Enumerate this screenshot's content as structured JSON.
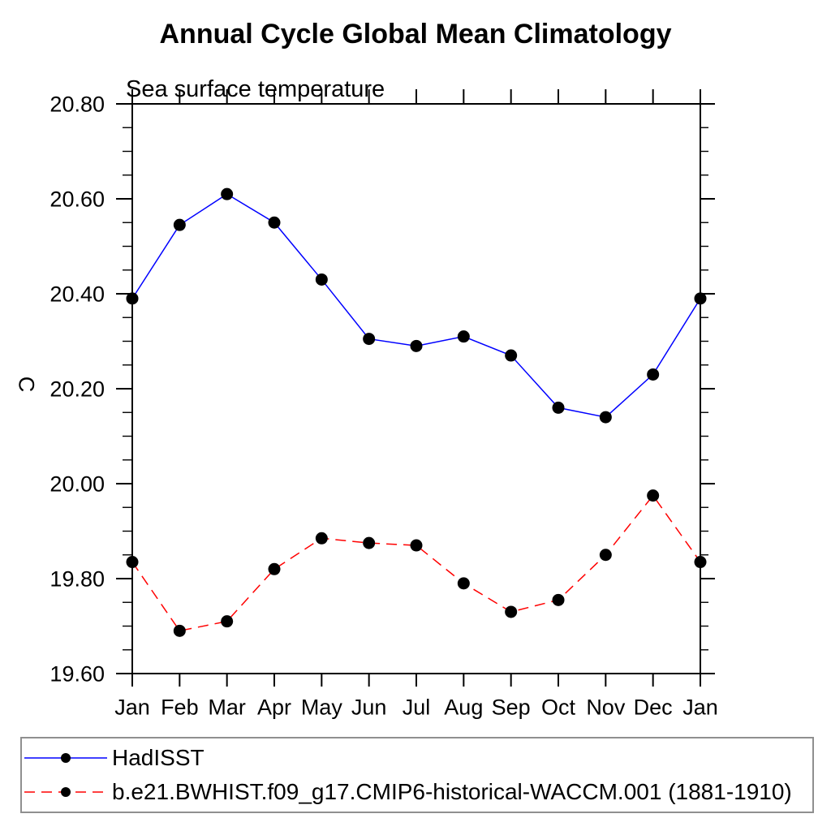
{
  "chart_data": {
    "type": "line",
    "title": "Annual Cycle Global Mean Climatology",
    "subtitle": "Sea surface temperature",
    "xlabel": "",
    "ylabel": "C",
    "x_tick_labels": [
      "Jan",
      "Feb",
      "Mar",
      "Apr",
      "May",
      "Jun",
      "Jul",
      "Aug",
      "Sep",
      "Oct",
      "Nov",
      "Dec",
      "Jan"
    ],
    "ylim": [
      19.6,
      20.8
    ],
    "y_major_step": 0.2,
    "y_minor_step": 0.05,
    "y_major_tick_labels": [
      "19.60",
      "19.80",
      "20.00",
      "20.20",
      "20.40",
      "20.60",
      "20.80"
    ],
    "grid": false,
    "legend_position": "bottom-left-box",
    "series": [
      {
        "name": "HadISST",
        "line_color": "#0000ff",
        "line_style": "solid",
        "marker": "filled-circle",
        "marker_color": "#000000",
        "values": [
          20.39,
          20.545,
          20.61,
          20.55,
          20.43,
          20.305,
          20.29,
          20.31,
          20.27,
          20.16,
          20.14,
          20.23,
          20.39
        ]
      },
      {
        "name": "b.e21.BWHIST.f09_g17.CMIP6-historical-WACCM.001 (1881-1910)",
        "line_color": "#ff0000",
        "line_style": "dashed",
        "marker": "filled-circle",
        "marker_color": "#000000",
        "values": [
          19.835,
          19.69,
          19.71,
          19.82,
          19.885,
          19.875,
          19.87,
          19.79,
          19.73,
          19.755,
          19.85,
          19.975,
          19.835
        ]
      }
    ]
  },
  "colors": {
    "axis": "#000000",
    "text": "#000000",
    "legend_border": "#8f8f8f",
    "background": "#ffffff"
  }
}
